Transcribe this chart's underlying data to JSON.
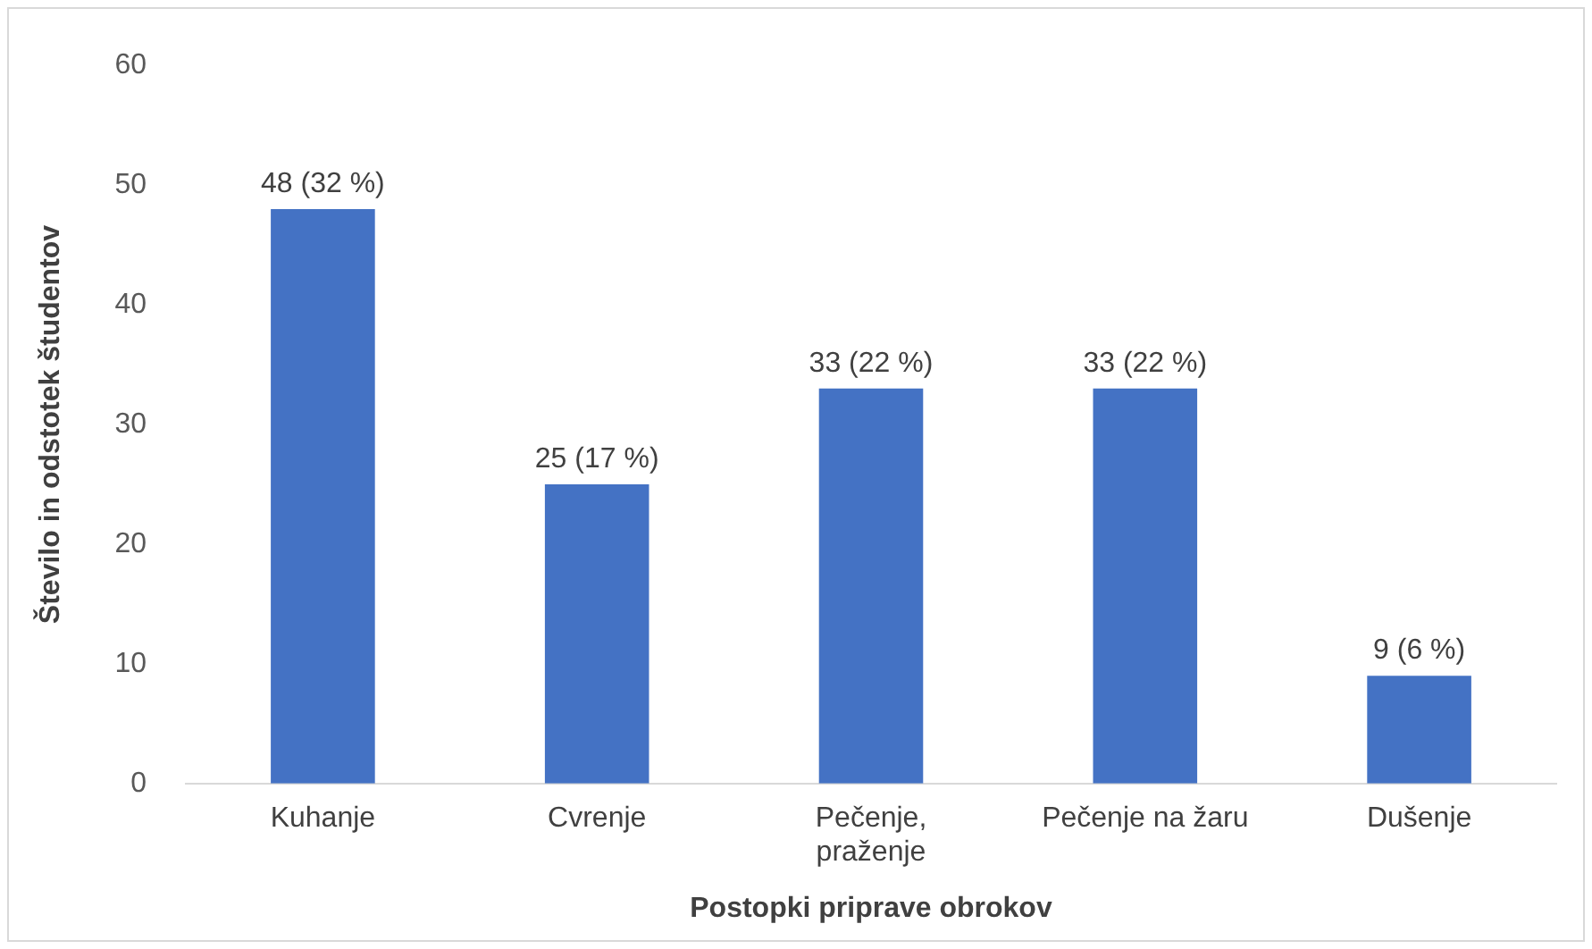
{
  "chart_data": {
    "type": "bar",
    "xlabel": "Postopki priprave obrokov",
    "ylabel": "Število in odstotek študentov",
    "categories": [
      "Kuhanje",
      "Cvrenje",
      "Pečenje, praženje",
      "Pečenje na žaru",
      "Dušenje"
    ],
    "values": [
      48,
      25,
      33,
      33,
      9
    ],
    "color": "#4472c4",
    "value_labels": [
      "48 (32 %)",
      "25 (17 %)",
      "33 (22 %)",
      "33 (22 %)",
      "9 (6 %)"
    ],
    "ylim": [
      0,
      60
    ],
    "yticks": [
      0,
      10,
      20,
      30,
      40,
      50,
      60
    ],
    "grid": false
  }
}
